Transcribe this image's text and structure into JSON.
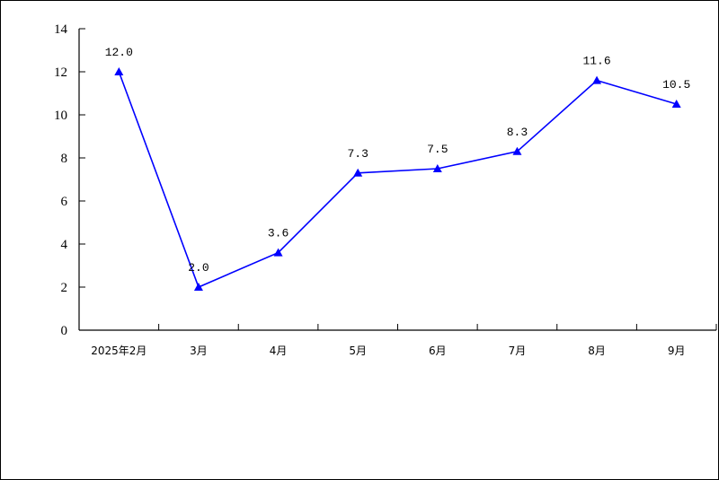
{
  "chart_data": {
    "type": "line",
    "title": "",
    "xlabel": "",
    "ylabel": "",
    "categories": [
      "2025年2月",
      "3月",
      "4月",
      "5月",
      "6月",
      "7月",
      "8月",
      "9月"
    ],
    "series": [
      {
        "name": "",
        "values": [
          12.0,
          2.0,
          3.6,
          7.3,
          7.5,
          8.3,
          11.6,
          10.5
        ],
        "labels": [
          "12.0",
          "2.0",
          "3.6",
          "7.3",
          "7.5",
          "8.3",
          "11.6",
          "10.5"
        ],
        "color": "#0000ff",
        "marker": "triangle"
      }
    ],
    "yticks": [
      "0",
      "2",
      "4",
      "6",
      "8",
      "10",
      "12",
      "14"
    ],
    "ylim": [
      0,
      14
    ],
    "grid": false,
    "legend": "none"
  }
}
